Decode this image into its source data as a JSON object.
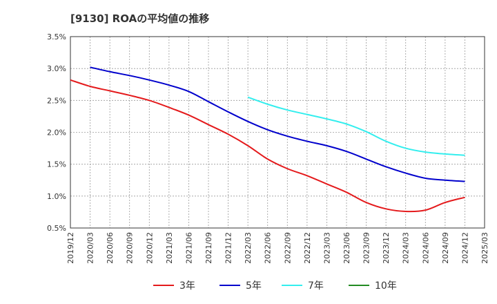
{
  "chart_data": {
    "type": "line",
    "title": "[9130]  ROAの平均値の推移",
    "x": [
      "2019/12",
      "2020/03",
      "2020/06",
      "2020/09",
      "2020/12",
      "2021/03",
      "2021/06",
      "2021/09",
      "2021/12",
      "2022/03",
      "2022/06",
      "2022/09",
      "2022/12",
      "2023/03",
      "2023/06",
      "2023/09",
      "2023/12",
      "2024/03",
      "2024/06",
      "2024/09",
      "2024/12",
      "2025/03"
    ],
    "y_ticks": [
      "0.5%",
      "1.0%",
      "1.5%",
      "2.0%",
      "2.5%",
      "3.0%",
      "3.5%"
    ],
    "ylim": [
      0.5,
      3.5
    ],
    "grid": true,
    "legend_position": "bottom",
    "series": [
      {
        "name": "3年",
        "color": "#e41a1c",
        "values": [
          2.82,
          2.72,
          2.65,
          2.58,
          2.5,
          2.39,
          2.27,
          2.12,
          1.97,
          1.79,
          1.58,
          1.43,
          1.32,
          1.19,
          1.06,
          0.9,
          0.8,
          0.76,
          0.78,
          0.9,
          0.98,
          null
        ]
      },
      {
        "name": "5年",
        "color": "#0000cc",
        "values": [
          null,
          3.02,
          2.95,
          2.89,
          2.82,
          2.74,
          2.64,
          2.48,
          2.32,
          2.17,
          2.04,
          1.94,
          1.86,
          1.79,
          1.7,
          1.58,
          1.46,
          1.36,
          1.28,
          1.25,
          1.23,
          null
        ]
      },
      {
        "name": "7年",
        "color": "#33eeee",
        "values": [
          null,
          null,
          null,
          null,
          null,
          null,
          null,
          null,
          null,
          2.55,
          2.44,
          2.35,
          2.28,
          2.21,
          2.13,
          2.01,
          1.86,
          1.75,
          1.69,
          1.66,
          1.64,
          null
        ]
      },
      {
        "name": "10年",
        "color": "#228b22",
        "values": [
          null,
          null,
          null,
          null,
          null,
          null,
          null,
          null,
          null,
          null,
          null,
          null,
          null,
          null,
          null,
          null,
          null,
          null,
          null,
          null,
          null,
          null
        ]
      }
    ]
  }
}
